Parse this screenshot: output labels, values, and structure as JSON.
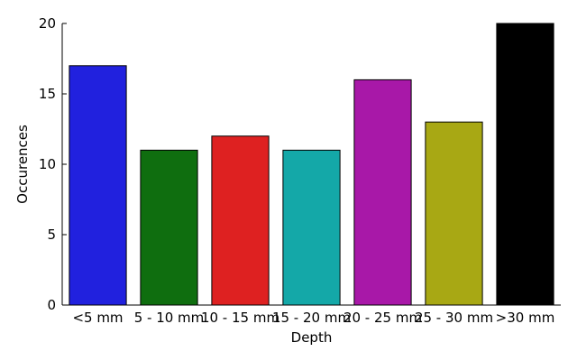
{
  "chart_data": {
    "type": "bar",
    "categories": [
      "<5 mm",
      "5 - 10 mm",
      "10 - 15 mm",
      "15 - 20 mm",
      "20 - 25 mm",
      "25 - 30 mm",
      ">30 mm"
    ],
    "values": [
      17,
      11,
      12,
      11,
      16,
      13,
      20
    ],
    "colors": [
      "#2121de",
      "#0f6e0f",
      "#de2121",
      "#14a8a8",
      "#a818a8",
      "#a8a814",
      "#000000"
    ],
    "xlabel": "Depth",
    "ylabel": "Occurences",
    "ylim": [
      0,
      20
    ],
    "yticks": [
      0,
      5,
      10,
      15,
      20
    ],
    "grid": false,
    "legend": "none"
  }
}
